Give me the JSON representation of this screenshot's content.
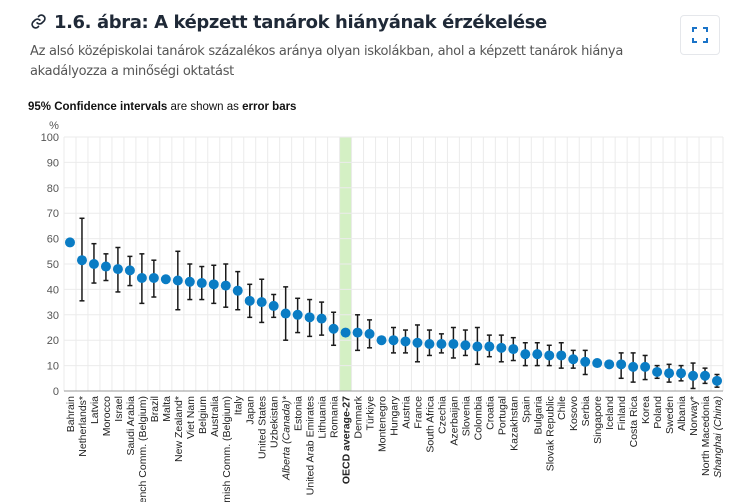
{
  "header": {
    "title": "1.6. ábra: A képzett tanárok hiányának érzékelése",
    "subtitle": "Az alsó középiskolai tanárok százalékos aránya olyan iskolákban, ahol a képzett tanárok hiánya akadályozza a minőségi oktatást",
    "expand_icon": "expand-icon",
    "link_icon": "link-icon"
  },
  "note": {
    "part1": "95% Confidence intervals",
    "part2": " are shown as ",
    "part3": "error bars"
  },
  "colors": {
    "point": "#0a7cc4",
    "errorbar": "#1a1a1a",
    "oecd_band": "#d4f0c4",
    "oecd_label": "#6cc04a",
    "grid": "#ebebeb"
  },
  "chart_data": {
    "type": "scatter",
    "title": "",
    "ylabel": "%",
    "ylim": [
      0,
      100
    ],
    "yticks": [
      0,
      10,
      20,
      30,
      40,
      50,
      60,
      70,
      80,
      90,
      100
    ],
    "grid": true,
    "highlight": "OECD average-27",
    "italic": [
      "Alberta (Canada)*",
      "Shanghai (China)"
    ],
    "categories": [
      "Bahrain",
      "Netherlands*",
      "Latvia",
      "Morocco",
      "Israel",
      "Saudi Arabia",
      "French Comm. (Belgium)",
      "Brazil",
      "Malta",
      "New Zealand*",
      "Viet Nam",
      "Belgium",
      "Australia",
      "Flemish Comm. (Belgium)",
      "Italy",
      "Japan",
      "United States",
      "Uzbekistan",
      "Alberta (Canada)*",
      "Estonia",
      "United Arab Emirates",
      "Lithuania",
      "Romania",
      "OECD average-27",
      "Denmark",
      "Türkiye",
      "Montenegro",
      "Hungary",
      "Austria",
      "France",
      "South Africa",
      "Czechia",
      "Azerbaijan",
      "Slovenia",
      "Colombia",
      "Croatia",
      "Portugal",
      "Kazakhstan",
      "Spain",
      "Bulgaria",
      "Slovak Republic",
      "Chile",
      "Kosovo",
      "Serbia",
      "Singapore",
      "Iceland",
      "Finland",
      "Costa Rica",
      "Korea",
      "Poland",
      "Sweden",
      "Albania",
      "Norway*",
      "North Macedonia",
      "Shanghai (China)"
    ],
    "values": [
      58.5,
      51.5,
      50,
      49,
      48,
      47.5,
      44.5,
      44.5,
      44,
      43.5,
      43,
      42.5,
      42,
      41.5,
      39.5,
      35.5,
      35,
      33.5,
      30.5,
      30,
      29,
      28.5,
      24.5,
      23,
      23,
      22.5,
      20,
      20,
      19.5,
      19,
      18.5,
      18.5,
      18.5,
      18,
      17.5,
      17.5,
      17,
      16.5,
      14.5,
      14.5,
      14,
      14,
      12.5,
      11.5,
      11,
      10.5,
      10.5,
      9.5,
      9.5,
      7.5,
      7,
      7,
      6,
      6,
      4
    ],
    "ci_low": [
      null,
      35.5,
      42.5,
      43.5,
      39,
      41.5,
      34.5,
      37,
      null,
      32,
      36,
      36,
      34.5,
      33,
      32,
      29,
      27,
      29,
      20,
      23,
      21.5,
      22,
      18,
      null,
      16,
      17,
      null,
      15,
      15,
      11.5,
      14,
      15,
      13,
      14,
      10.5,
      13.5,
      11.5,
      12,
      10,
      10,
      10,
      9,
      9,
      6.5,
      null,
      null,
      5,
      3.5,
      4.5,
      5,
      3.5,
      4,
      1,
      3,
      1.5
    ],
    "ci_high": [
      null,
      68,
      58,
      54,
      56.5,
      53,
      54,
      51.5,
      null,
      55,
      50,
      49,
      49.5,
      50,
      47,
      42,
      44,
      38,
      41,
      36.5,
      36,
      35,
      31,
      null,
      30,
      28,
      null,
      25,
      24,
      26,
      24,
      22.5,
      25,
      24,
      25,
      22,
      22,
      21,
      19,
      19,
      18,
      19,
      16,
      16,
      null,
      null,
      15,
      15,
      14,
      10,
      10.5,
      10,
      11,
      9,
      6.5
    ]
  }
}
